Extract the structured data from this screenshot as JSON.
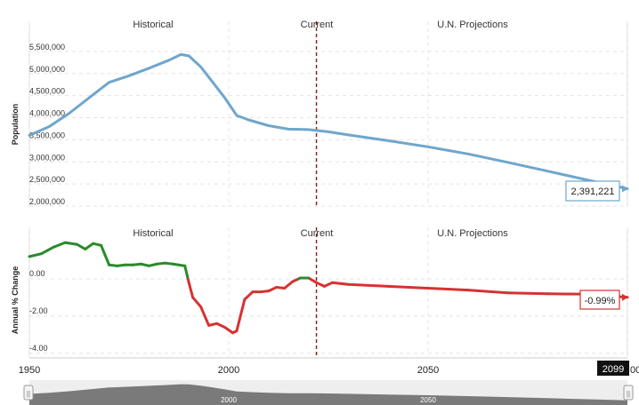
{
  "chart_data": [
    {
      "type": "line",
      "ylabel": "Population",
      "sections": [
        "Historical",
        "Current",
        "U.N. Projections"
      ],
      "xlim": [
        1950,
        2100
      ],
      "ylim": [
        2000000,
        5900000
      ],
      "yticks": [
        2000000,
        2500000,
        3000000,
        3500000,
        4000000,
        4500000,
        5000000,
        5500000
      ],
      "ytick_labels": [
        "2,000,000",
        "2,500,000",
        "3,000,000",
        "3,500,000",
        "4,000,000",
        "4,500,000",
        "5,000,000",
        "5,500,000"
      ],
      "current_year": 2022,
      "color": "#6fa6cc",
      "x": [
        1950,
        1955,
        1960,
        1965,
        1970,
        1975,
        1980,
        1985,
        1988,
        1990,
        1993,
        1996,
        1999,
        2002,
        2005,
        2010,
        2015,
        2020,
        2025,
        2030,
        2040,
        2050,
        2060,
        2070,
        2080,
        2090,
        2100
      ],
      "values": [
        3600000,
        3800000,
        4100000,
        4450000,
        4800000,
        4950000,
        5120000,
        5300000,
        5430000,
        5400000,
        5150000,
        4800000,
        4450000,
        4050000,
        3950000,
        3820000,
        3740000,
        3730000,
        3680000,
        3610000,
        3480000,
        3340000,
        3180000,
        2990000,
        2790000,
        2590000,
        2391221
      ],
      "end_label": "2,391,221"
    },
    {
      "type": "line",
      "ylabel": "Annual % Change",
      "sections": [
        "Historical",
        "Current",
        "U.N. Projections"
      ],
      "xlim": [
        1950,
        2100
      ],
      "ylim": [
        -4.2,
        2.1
      ],
      "yticks": [
        0,
        -2,
        -4
      ],
      "ytick_labels": [
        "0.00",
        "-2.00",
        "-4.00"
      ],
      "current_year": 2022,
      "positive_color": "#2a8a2a",
      "negative_color": "#d63232",
      "x": [
        1950,
        1953,
        1956,
        1959,
        1962,
        1964,
        1966,
        1968,
        1970,
        1972,
        1974,
        1976,
        1978,
        1980,
        1982,
        1984,
        1986,
        1989,
        1990,
        1991,
        1993,
        1995,
        1997,
        1999,
        2001,
        2002,
        2004,
        2006,
        2008,
        2010,
        2012,
        2014,
        2016,
        2018,
        2020,
        2022,
        2024,
        2026,
        2030,
        2040,
        2050,
        2060,
        2070,
        2080,
        2090,
        2100
      ],
      "values": [
        1.2,
        1.35,
        1.7,
        1.95,
        1.85,
        1.6,
        1.9,
        1.8,
        0.75,
        0.7,
        0.75,
        0.75,
        0.8,
        0.7,
        0.8,
        0.85,
        0.8,
        0.7,
        -0.2,
        -1.0,
        -1.5,
        -2.5,
        -2.4,
        -2.6,
        -2.9,
        -2.8,
        -1.1,
        -0.7,
        -0.7,
        -0.65,
        -0.45,
        -0.5,
        -0.15,
        0.05,
        0.05,
        -0.2,
        -0.4,
        -0.2,
        -0.3,
        -0.4,
        -0.5,
        -0.6,
        -0.75,
        -0.8,
        -0.82,
        -0.99
      ],
      "end_label": "-0.99%"
    }
  ],
  "xaxis": {
    "ticks": [
      1950,
      2000,
      2050
    ],
    "tick_labels": [
      "1950",
      "2000",
      "2050"
    ],
    "current_year_label": "2099",
    "clipped_label": "00"
  },
  "navigator": {
    "labels": [
      "2000",
      "2050"
    ],
    "left_handle": "||",
    "right_handle": "||"
  }
}
